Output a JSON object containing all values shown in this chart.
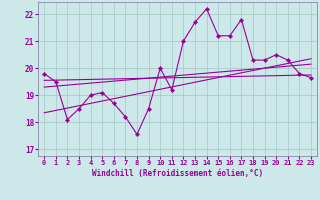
{
  "xlabel": "Windchill (Refroidissement éolien,°C)",
  "bg_color": "#cce8e8",
  "grid_color": "#aacccc",
  "line_color": "#990099",
  "xlim": [
    -0.5,
    23.5
  ],
  "ylim": [
    16.75,
    22.45
  ],
  "yticks": [
    17,
    18,
    19,
    20,
    21,
    22
  ],
  "xticks": [
    0,
    1,
    2,
    3,
    4,
    5,
    6,
    7,
    8,
    9,
    10,
    11,
    12,
    13,
    14,
    15,
    16,
    17,
    18,
    19,
    20,
    21,
    22,
    23
  ],
  "line_main": [
    19.8,
    19.5,
    18.1,
    18.5,
    19.0,
    19.1,
    18.7,
    18.2,
    17.55,
    18.5,
    20.0,
    19.2,
    21.0,
    21.7,
    22.2,
    21.2,
    21.2,
    21.8,
    20.3,
    20.3,
    20.5,
    20.3,
    19.8,
    19.65
  ],
  "trend1_x": [
    0,
    23
  ],
  "trend1_y": [
    19.3,
    20.15
  ],
  "trend2_x": [
    0,
    23
  ],
  "trend2_y": [
    18.35,
    20.35
  ],
  "trend3_x": [
    0,
    23
  ],
  "trend3_y": [
    19.55,
    19.75
  ]
}
